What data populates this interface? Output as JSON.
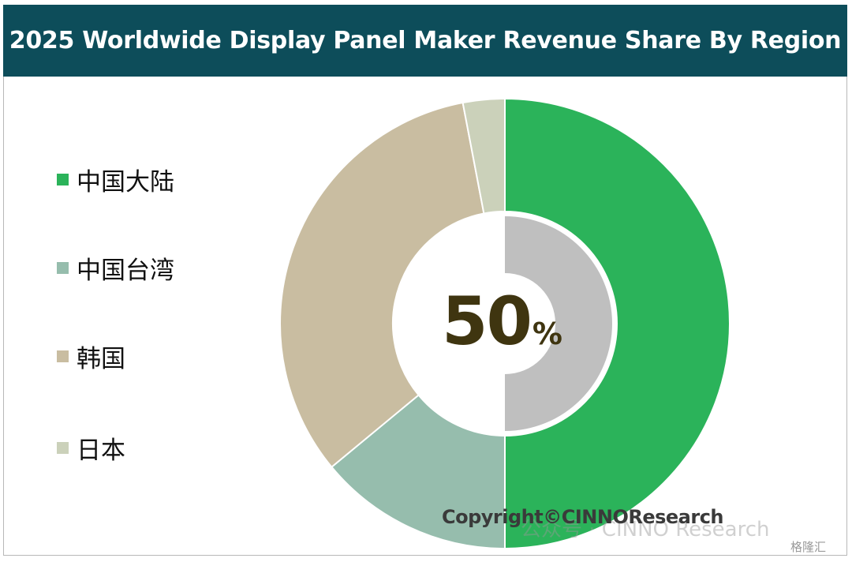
{
  "header": {
    "title": "2025 Worldwide Display Panel Maker Revenue Share By Region"
  },
  "center_label": {
    "value": "50",
    "unit": "%"
  },
  "copyright": "Copyright©CINNOResearch",
  "watermark": {
    "text": "公众号 · CINNO Research",
    "badge": "格隆汇"
  },
  "colors": {
    "title_bg": "#0d4d5a",
    "mainland": "#2bb35a",
    "taiwan": "#96bdad",
    "korea": "#c9bda1",
    "japan": "#cbd1ba",
    "inner_ring": "#bfbfbf",
    "center_text": "#3f3510"
  },
  "chart_data": {
    "type": "pie",
    "variant": "donut",
    "categories": [
      "中国大陆",
      "中国台湾",
      "韩国",
      "日本"
    ],
    "values": [
      50,
      14,
      33,
      3
    ],
    "colors": [
      "#2bb35a",
      "#96bdad",
      "#c9bda1",
      "#cbd1ba"
    ],
    "start_angle_deg": 0,
    "direction": "clockwise",
    "inner_ring": {
      "value": 50,
      "color": "#bfbfbf"
    },
    "legend_position": "left"
  }
}
